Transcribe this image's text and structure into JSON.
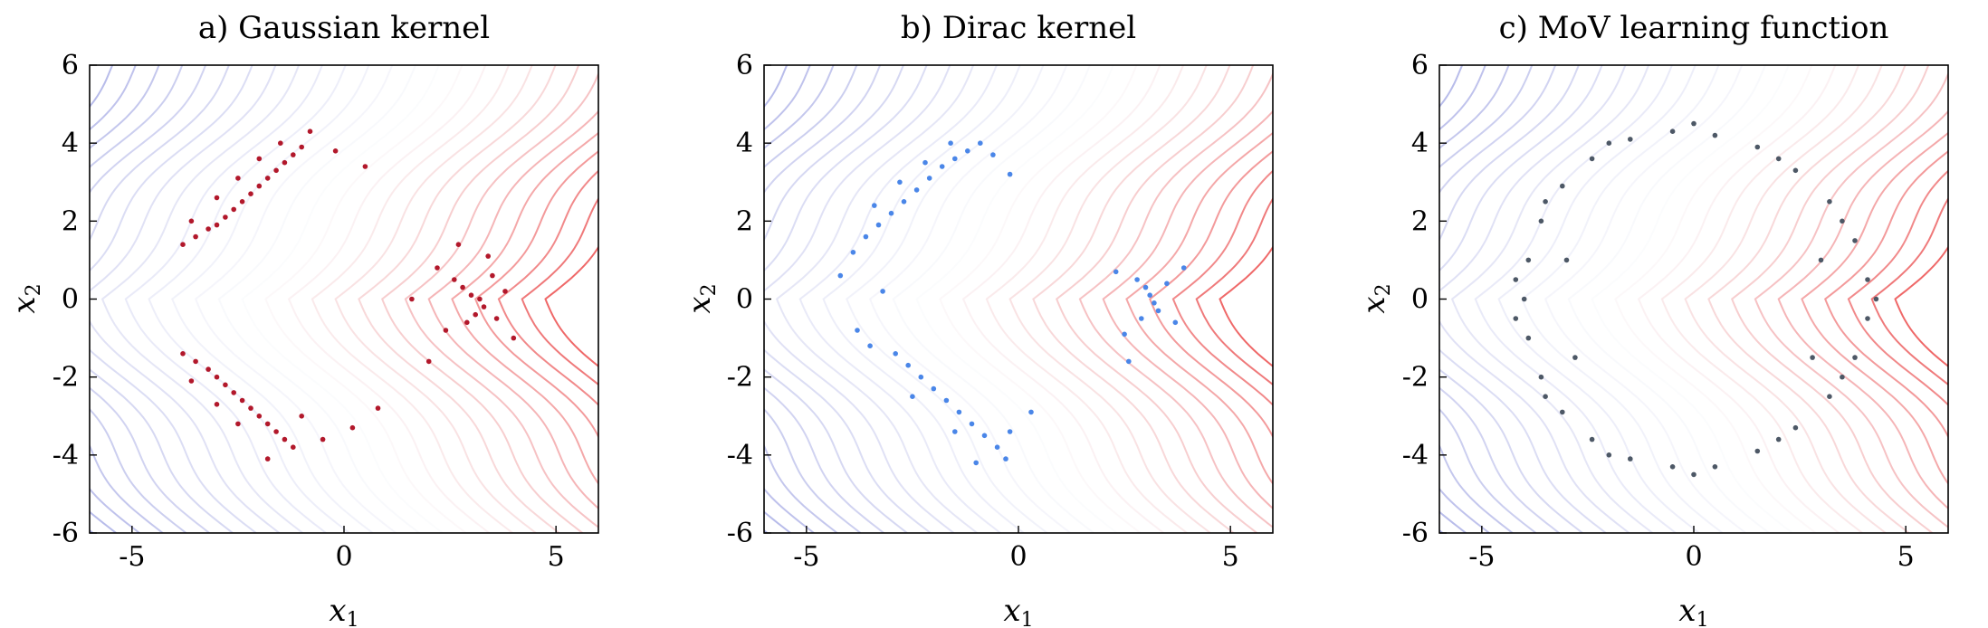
{
  "chart_data": [
    {
      "type": "scatter",
      "title": "a) Gaussian kernel",
      "xlabel": "x",
      "xlabel_sub": "1",
      "ylabel": "x",
      "ylabel_sub": "2",
      "xlim": [
        -6,
        6
      ],
      "ylim": [
        -6,
        6
      ],
      "xticks": [
        -5,
        0,
        5
      ],
      "yticks": [
        -6,
        -4,
        -2,
        0,
        2,
        4,
        6
      ],
      "grid": false,
      "background": "contour",
      "point_color": "#b2182b",
      "series": [
        {
          "values": [
            [
              -3.8,
              1.4
            ],
            [
              -3.5,
              1.6
            ],
            [
              -3.2,
              1.8
            ],
            [
              -3.0,
              1.9
            ],
            [
              -2.8,
              2.1
            ],
            [
              -2.6,
              2.3
            ],
            [
              -2.4,
              2.5
            ],
            [
              -2.2,
              2.7
            ],
            [
              -2.0,
              2.9
            ],
            [
              -1.8,
              3.1
            ],
            [
              -1.6,
              3.3
            ],
            [
              -1.4,
              3.5
            ],
            [
              -1.2,
              3.7
            ],
            [
              -1.0,
              3.9
            ],
            [
              -3.6,
              2.0
            ],
            [
              -3.0,
              2.6
            ],
            [
              -2.5,
              3.1
            ],
            [
              -2.0,
              3.6
            ],
            [
              -1.5,
              4.0
            ],
            [
              -0.8,
              4.3
            ],
            [
              -0.2,
              3.8
            ],
            [
              0.5,
              3.4
            ],
            [
              -3.8,
              -1.4
            ],
            [
              -3.5,
              -1.6
            ],
            [
              -3.2,
              -1.8
            ],
            [
              -3.0,
              -2.0
            ],
            [
              -2.8,
              -2.2
            ],
            [
              -2.6,
              -2.4
            ],
            [
              -2.4,
              -2.6
            ],
            [
              -2.2,
              -2.8
            ],
            [
              -2.0,
              -3.0
            ],
            [
              -1.8,
              -3.2
            ],
            [
              -1.6,
              -3.4
            ],
            [
              -1.4,
              -3.6
            ],
            [
              -1.2,
              -3.8
            ],
            [
              -3.6,
              -2.1
            ],
            [
              -3.0,
              -2.7
            ],
            [
              -2.5,
              -3.2
            ],
            [
              -1.0,
              -3.0
            ],
            [
              -0.5,
              -3.6
            ],
            [
              0.2,
              -3.3
            ],
            [
              0.8,
              -2.8
            ],
            [
              -1.8,
              -4.1
            ],
            [
              2.6,
              0.5
            ],
            [
              2.8,
              0.3
            ],
            [
              3.0,
              0.1
            ],
            [
              3.2,
              0.0
            ],
            [
              3.3,
              -0.2
            ],
            [
              3.1,
              -0.4
            ],
            [
              2.9,
              -0.6
            ],
            [
              3.5,
              0.6
            ],
            [
              3.6,
              -0.5
            ],
            [
              2.4,
              -0.8
            ],
            [
              2.2,
              0.8
            ],
            [
              3.8,
              0.2
            ],
            [
              4.0,
              -1.0
            ],
            [
              2.7,
              1.4
            ],
            [
              3.4,
              1.1
            ],
            [
              1.6,
              0.0
            ],
            [
              2.0,
              -1.6
            ]
          ]
        }
      ]
    },
    {
      "type": "scatter",
      "title": "b) Dirac kernel",
      "xlabel": "x",
      "xlabel_sub": "1",
      "ylabel": "x",
      "ylabel_sub": "2",
      "xlim": [
        -6,
        6
      ],
      "ylim": [
        -6,
        6
      ],
      "xticks": [
        -5,
        0,
        5
      ],
      "yticks": [
        -6,
        -4,
        -2,
        0,
        2,
        4,
        6
      ],
      "grid": false,
      "background": "contour",
      "point_color": "#4a86e8",
      "series": [
        {
          "values": [
            [
              -4.2,
              0.6
            ],
            [
              -3.9,
              1.2
            ],
            [
              -3.6,
              1.6
            ],
            [
              -3.3,
              1.9
            ],
            [
              -3.0,
              2.2
            ],
            [
              -2.7,
              2.5
            ],
            [
              -2.4,
              2.8
            ],
            [
              -2.1,
              3.1
            ],
            [
              -1.8,
              3.4
            ],
            [
              -1.5,
              3.6
            ],
            [
              -1.2,
              3.8
            ],
            [
              -0.9,
              4.0
            ],
            [
              -3.4,
              2.4
            ],
            [
              -2.8,
              3.0
            ],
            [
              -2.2,
              3.5
            ],
            [
              -1.6,
              4.0
            ],
            [
              -0.6,
              3.7
            ],
            [
              -0.2,
              3.2
            ],
            [
              -2.9,
              -1.4
            ],
            [
              -2.6,
              -1.7
            ],
            [
              -2.3,
              -2.0
            ],
            [
              -2.0,
              -2.3
            ],
            [
              -1.7,
              -2.6
            ],
            [
              -1.4,
              -2.9
            ],
            [
              -1.1,
              -3.2
            ],
            [
              -0.8,
              -3.5
            ],
            [
              -0.5,
              -3.8
            ],
            [
              -0.3,
              -4.1
            ],
            [
              -3.8,
              -0.8
            ],
            [
              -3.5,
              -1.2
            ],
            [
              -2.5,
              -2.5
            ],
            [
              -1.5,
              -3.4
            ],
            [
              -0.2,
              -3.4
            ],
            [
              0.3,
              -2.9
            ],
            [
              -1.0,
              -4.2
            ],
            [
              -3.2,
              0.2
            ],
            [
              2.8,
              0.5
            ],
            [
              3.0,
              0.3
            ],
            [
              3.1,
              0.1
            ],
            [
              3.2,
              -0.1
            ],
            [
              3.3,
              -0.3
            ],
            [
              2.9,
              -0.5
            ],
            [
              3.5,
              0.4
            ],
            [
              3.7,
              -0.6
            ],
            [
              2.5,
              -0.9
            ],
            [
              2.3,
              0.7
            ],
            [
              3.9,
              0.8
            ],
            [
              2.6,
              -1.6
            ]
          ]
        }
      ]
    },
    {
      "type": "scatter",
      "title": "c) MoV learning function",
      "xlabel": "x",
      "xlabel_sub": "1",
      "ylabel": "x",
      "ylabel_sub": "2",
      "xlim": [
        -6,
        6
      ],
      "ylim": [
        -6,
        6
      ],
      "xticks": [
        -5,
        0,
        5
      ],
      "yticks": [
        -6,
        -4,
        -2,
        0,
        2,
        4,
        6
      ],
      "grid": false,
      "background": "contour",
      "point_color": "#4d5866",
      "series": [
        {
          "values": [
            [
              -4.0,
              0.0
            ],
            [
              -3.9,
              1.0
            ],
            [
              -3.6,
              2.0
            ],
            [
              -3.1,
              2.9
            ],
            [
              -2.4,
              3.6
            ],
            [
              -1.5,
              4.1
            ],
            [
              -0.5,
              4.3
            ],
            [
              0.5,
              4.2
            ],
            [
              1.5,
              3.9
            ],
            [
              2.4,
              3.3
            ],
            [
              3.2,
              2.5
            ],
            [
              3.8,
              1.5
            ],
            [
              4.1,
              0.5
            ],
            [
              4.1,
              -0.5
            ],
            [
              3.8,
              -1.5
            ],
            [
              3.2,
              -2.5
            ],
            [
              2.4,
              -3.3
            ],
            [
              1.5,
              -3.9
            ],
            [
              0.5,
              -4.3
            ],
            [
              -0.5,
              -4.3
            ],
            [
              -1.5,
              -4.1
            ],
            [
              -2.4,
              -3.6
            ],
            [
              -3.1,
              -2.9
            ],
            [
              -3.6,
              -2.0
            ],
            [
              -3.9,
              -1.0
            ],
            [
              -4.2,
              0.5
            ],
            [
              -3.5,
              2.5
            ],
            [
              -2.0,
              4.0
            ],
            [
              0.0,
              4.5
            ],
            [
              2.0,
              3.6
            ],
            [
              3.5,
              2.0
            ],
            [
              4.3,
              0.0
            ],
            [
              3.5,
              -2.0
            ],
            [
              2.0,
              -3.6
            ],
            [
              0.0,
              -4.5
            ],
            [
              -2.0,
              -4.0
            ],
            [
              -3.5,
              -2.5
            ],
            [
              -4.2,
              -0.5
            ],
            [
              -3.0,
              1.0
            ],
            [
              -2.8,
              -1.5
            ],
            [
              3.0,
              1.0
            ],
            [
              2.8,
              -1.5
            ]
          ]
        }
      ]
    }
  ],
  "colors": {
    "cool_end": "#0d1bb8",
    "mid": "#f7f7fb",
    "warm_end": "#ec4f4f"
  }
}
